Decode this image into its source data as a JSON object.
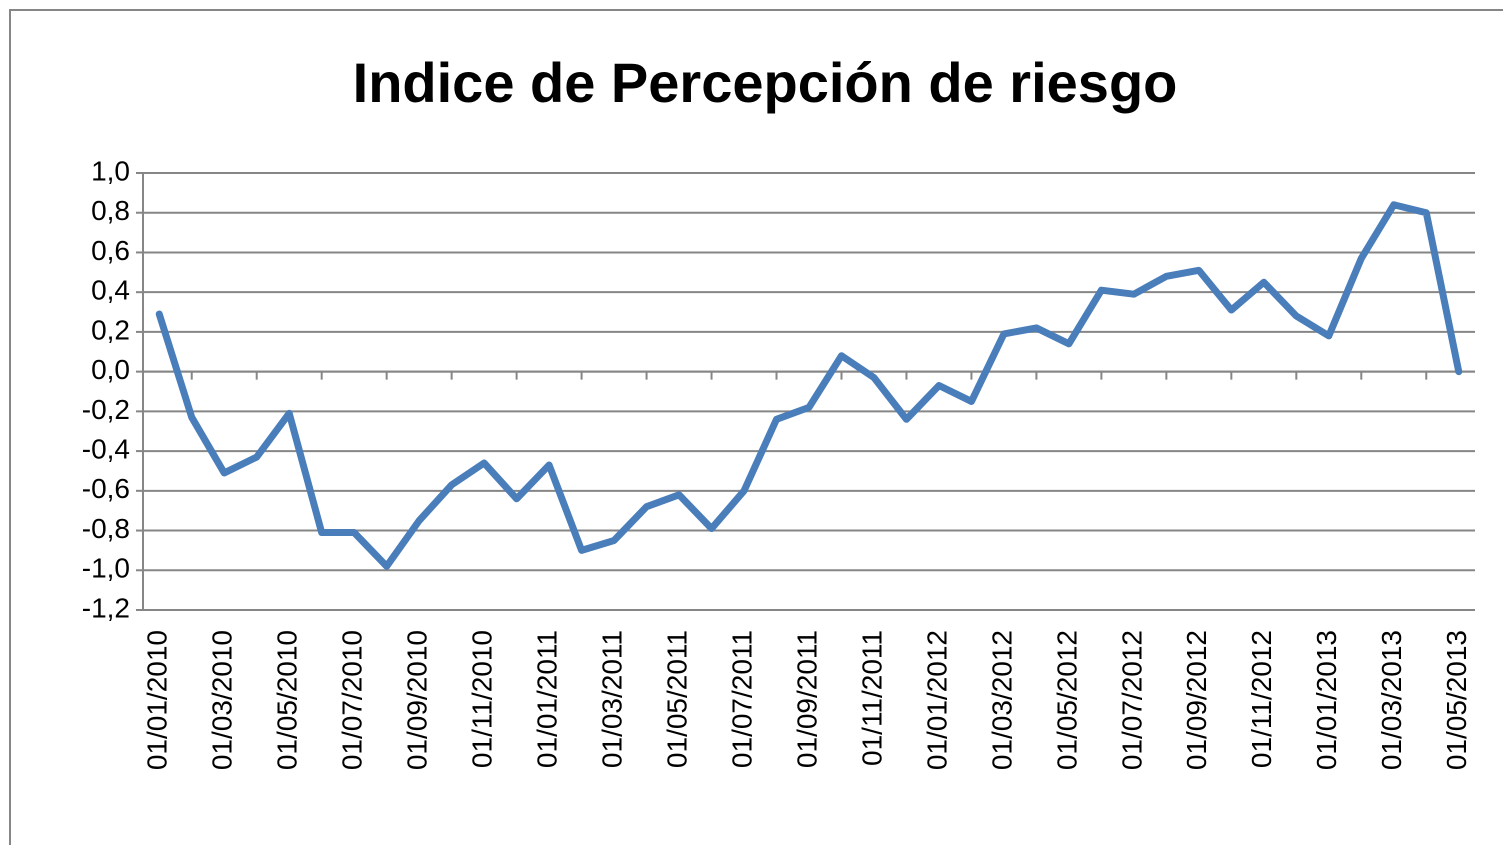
{
  "chart_data": {
    "type": "line",
    "title": "Indice de Percepción de riesgo",
    "categories": [
      "01/01/2010",
      null,
      "01/03/2010",
      null,
      "01/05/2010",
      null,
      "01/07/2010",
      null,
      "01/09/2010",
      null,
      "01/11/2010",
      null,
      "01/01/2011",
      null,
      "01/03/2011",
      null,
      "01/05/2011",
      null,
      "01/07/2011",
      null,
      "01/09/2011",
      null,
      "01/11/2011",
      null,
      "01/01/2012",
      null,
      "01/03/2012",
      null,
      "01/05/2012",
      null,
      "01/07/2012",
      null,
      "01/09/2012",
      null,
      "01/11/2012",
      null,
      "01/01/2013",
      null,
      "01/03/2013",
      null,
      "01/05/2013"
    ],
    "series": [
      {
        "color": "#4a7ebb",
        "values": [
          0.29,
          -0.23,
          -0.51,
          -0.43,
          -0.21,
          -0.81,
          -0.81,
          -0.98,
          -0.75,
          -0.57,
          -0.46,
          -0.64,
          -0.47,
          -0.9,
          -0.85,
          -0.68,
          -0.62,
          -0.79,
          -0.6,
          -0.24,
          -0.18,
          0.08,
          -0.03,
          -0.24,
          -0.07,
          -0.15,
          0.19,
          0.22,
          0.14,
          0.41,
          0.39,
          0.48,
          0.51,
          0.31,
          0.45,
          0.28,
          0.18,
          0.57,
          0.84,
          0.8,
          0.0
        ]
      }
    ],
    "ylim": [
      -1.2,
      1.0
    ],
    "yticks": [
      {
        "value": -1.2,
        "label": "-1,2"
      },
      {
        "value": -1.0,
        "label": "-1,0"
      },
      {
        "value": -0.8,
        "label": "-0,8"
      },
      {
        "value": -0.6,
        "label": "-0,6"
      },
      {
        "value": -0.4,
        "label": "-0,4"
      },
      {
        "value": -0.2,
        "label": "-0,2"
      },
      {
        "value": 0,
        "label": "0,0"
      },
      {
        "value": 0.2,
        "label": "0,2"
      },
      {
        "value": 0.4,
        "label": "0,4"
      },
      {
        "value": 0.6,
        "label": "0,6"
      },
      {
        "value": 0.8,
        "label": "0,8"
      },
      {
        "value": 1.0,
        "label": "1,0"
      }
    ],
    "grid": true
  }
}
